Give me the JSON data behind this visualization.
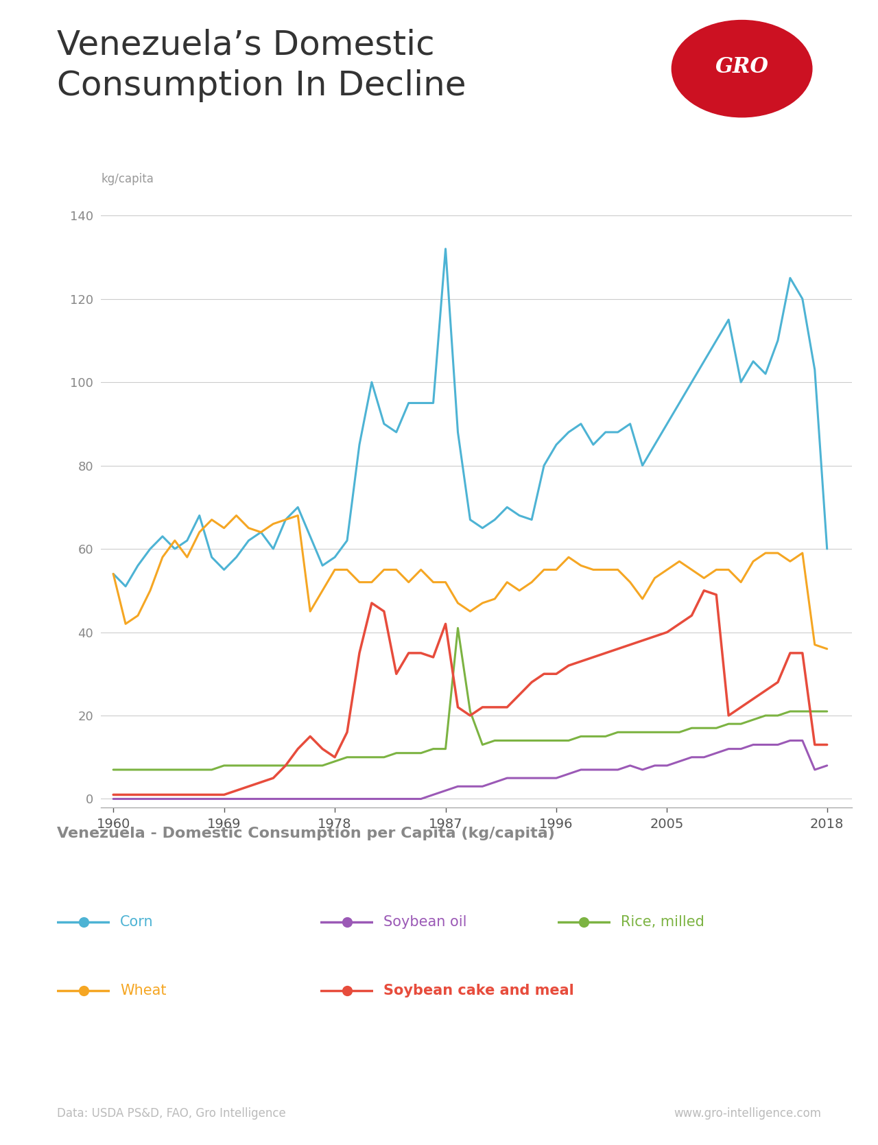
{
  "title": "Venezuela’s Domestic\nConsumption In Decline",
  "ylabel": "kg/capita",
  "subtitle": "Venezuela - Domestic Consumption per Capita (kg/capita)",
  "footer_left": "Data: USDA PS&D, FAO, Gro Intelligence",
  "footer_right": "www.gro-intelligence.com",
  "ylim": [
    -2,
    145
  ],
  "yticks": [
    0,
    20,
    40,
    60,
    80,
    100,
    120,
    140
  ],
  "xticks": [
    1960,
    1969,
    1978,
    1987,
    1996,
    2005,
    2018
  ],
  "xlim": [
    1959,
    2020
  ],
  "background_color": "#ffffff",
  "grid_color": "#cccccc",
  "series": {
    "Corn": {
      "color": "#4db3d4",
      "bold": false,
      "years": [
        1960,
        1961,
        1962,
        1963,
        1964,
        1965,
        1966,
        1967,
        1968,
        1969,
        1970,
        1971,
        1972,
        1973,
        1974,
        1975,
        1976,
        1977,
        1978,
        1979,
        1980,
        1981,
        1982,
        1983,
        1984,
        1985,
        1986,
        1987,
        1988,
        1989,
        1990,
        1991,
        1992,
        1993,
        1994,
        1995,
        1996,
        1997,
        1998,
        1999,
        2000,
        2001,
        2002,
        2003,
        2004,
        2005,
        2006,
        2007,
        2008,
        2009,
        2010,
        2011,
        2012,
        2013,
        2014,
        2015,
        2016,
        2017,
        2018
      ],
      "values": [
        54,
        51,
        56,
        60,
        63,
        60,
        62,
        68,
        58,
        55,
        58,
        62,
        64,
        60,
        67,
        70,
        63,
        56,
        58,
        62,
        85,
        100,
        90,
        88,
        95,
        95,
        95,
        132,
        88,
        67,
        65,
        67,
        70,
        68,
        67,
        80,
        85,
        88,
        90,
        85,
        88,
        88,
        90,
        80,
        85,
        90,
        95,
        100,
        105,
        110,
        115,
        100,
        105,
        102,
        110,
        125,
        120,
        103,
        60
      ]
    },
    "Wheat": {
      "color": "#f5a623",
      "bold": false,
      "years": [
        1960,
        1961,
        1962,
        1963,
        1964,
        1965,
        1966,
        1967,
        1968,
        1969,
        1970,
        1971,
        1972,
        1973,
        1974,
        1975,
        1976,
        1977,
        1978,
        1979,
        1980,
        1981,
        1982,
        1983,
        1984,
        1985,
        1986,
        1987,
        1988,
        1989,
        1990,
        1991,
        1992,
        1993,
        1994,
        1995,
        1996,
        1997,
        1998,
        1999,
        2000,
        2001,
        2002,
        2003,
        2004,
        2005,
        2006,
        2007,
        2008,
        2009,
        2010,
        2011,
        2012,
        2013,
        2014,
        2015,
        2016,
        2017,
        2018
      ],
      "values": [
        54,
        42,
        44,
        50,
        58,
        62,
        58,
        64,
        67,
        65,
        68,
        65,
        64,
        66,
        67,
        68,
        45,
        50,
        55,
        55,
        52,
        52,
        55,
        55,
        52,
        55,
        52,
        52,
        47,
        45,
        47,
        48,
        52,
        50,
        52,
        55,
        55,
        58,
        56,
        55,
        55,
        55,
        52,
        48,
        53,
        55,
        57,
        55,
        53,
        55,
        55,
        52,
        57,
        59,
        59,
        57,
        59,
        37,
        36
      ]
    },
    "Soybean oil": {
      "color": "#9b59b6",
      "bold": false,
      "years": [
        1960,
        1961,
        1962,
        1963,
        1964,
        1965,
        1966,
        1967,
        1968,
        1969,
        1970,
        1971,
        1972,
        1973,
        1974,
        1975,
        1976,
        1977,
        1978,
        1979,
        1980,
        1981,
        1982,
        1983,
        1984,
        1985,
        1986,
        1987,
        1988,
        1989,
        1990,
        1991,
        1992,
        1993,
        1994,
        1995,
        1996,
        1997,
        1998,
        1999,
        2000,
        2001,
        2002,
        2003,
        2004,
        2005,
        2006,
        2007,
        2008,
        2009,
        2010,
        2011,
        2012,
        2013,
        2014,
        2015,
        2016,
        2017,
        2018
      ],
      "values": [
        0,
        0,
        0,
        0,
        0,
        0,
        0,
        0,
        0,
        0,
        0,
        0,
        0,
        0,
        0,
        0,
        0,
        0,
        0,
        0,
        0,
        0,
        0,
        0,
        0,
        0,
        1,
        2,
        3,
        3,
        3,
        4,
        5,
        5,
        5,
        5,
        5,
        6,
        7,
        7,
        7,
        7,
        8,
        7,
        8,
        8,
        9,
        10,
        10,
        11,
        12,
        12,
        13,
        13,
        13,
        14,
        14,
        7,
        8
      ]
    },
    "Rice, milled": {
      "color": "#7cb342",
      "bold": false,
      "years": [
        1960,
        1961,
        1962,
        1963,
        1964,
        1965,
        1966,
        1967,
        1968,
        1969,
        1970,
        1971,
        1972,
        1973,
        1974,
        1975,
        1976,
        1977,
        1978,
        1979,
        1980,
        1981,
        1982,
        1983,
        1984,
        1985,
        1986,
        1987,
        1988,
        1989,
        1990,
        1991,
        1992,
        1993,
        1994,
        1995,
        1996,
        1997,
        1998,
        1999,
        2000,
        2001,
        2002,
        2003,
        2004,
        2005,
        2006,
        2007,
        2008,
        2009,
        2010,
        2011,
        2012,
        2013,
        2014,
        2015,
        2016,
        2017,
        2018
      ],
      "values": [
        7,
        7,
        7,
        7,
        7,
        7,
        7,
        7,
        7,
        8,
        8,
        8,
        8,
        8,
        8,
        8,
        8,
        8,
        9,
        10,
        10,
        10,
        10,
        11,
        11,
        11,
        12,
        12,
        41,
        21,
        13,
        14,
        14,
        14,
        14,
        14,
        14,
        14,
        15,
        15,
        15,
        16,
        16,
        16,
        16,
        16,
        16,
        17,
        17,
        17,
        18,
        18,
        19,
        20,
        20,
        21,
        21,
        21,
        21
      ]
    },
    "Soybean cake and meal": {
      "color": "#e74c3c",
      "bold": true,
      "years": [
        1960,
        1961,
        1962,
        1963,
        1964,
        1965,
        1966,
        1967,
        1968,
        1969,
        1970,
        1971,
        1972,
        1973,
        1974,
        1975,
        1976,
        1977,
        1978,
        1979,
        1980,
        1981,
        1982,
        1983,
        1984,
        1985,
        1986,
        1987,
        1988,
        1989,
        1990,
        1991,
        1992,
        1993,
        1994,
        1995,
        1996,
        1997,
        1998,
        1999,
        2000,
        2001,
        2002,
        2003,
        2004,
        2005,
        2006,
        2007,
        2008,
        2009,
        2010,
        2011,
        2012,
        2013,
        2014,
        2015,
        2016,
        2017,
        2018
      ],
      "values": [
        1,
        1,
        1,
        1,
        1,
        1,
        1,
        1,
        1,
        1,
        2,
        3,
        4,
        5,
        8,
        12,
        15,
        12,
        10,
        16,
        35,
        47,
        45,
        30,
        35,
        35,
        34,
        42,
        22,
        20,
        22,
        22,
        22,
        25,
        28,
        30,
        30,
        32,
        33,
        34,
        35,
        36,
        37,
        38,
        39,
        40,
        42,
        44,
        50,
        49,
        20,
        22,
        24,
        26,
        28,
        35,
        35,
        13,
        13
      ]
    }
  }
}
